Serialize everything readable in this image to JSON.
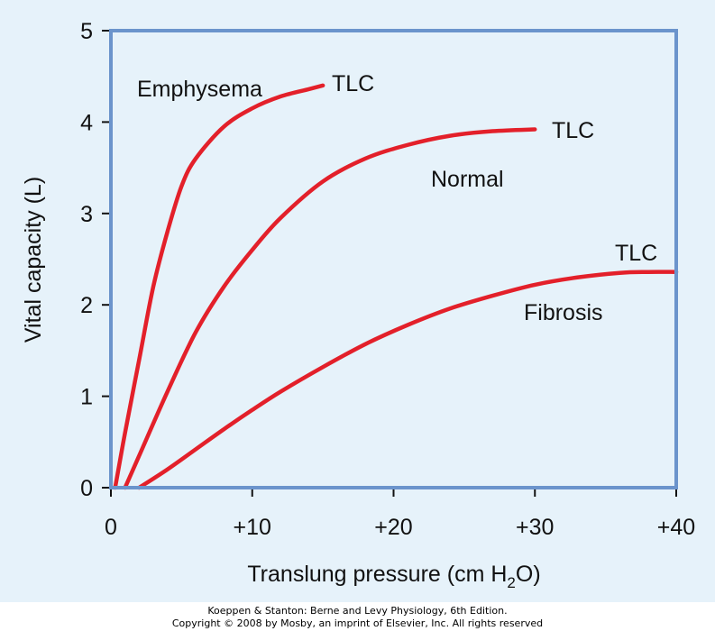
{
  "colors": {
    "panel_background": "#e6f2fa",
    "axis_frame": "#6b94cc",
    "curve": "#e3202a",
    "text": "#111111"
  },
  "chart_data": {
    "type": "line",
    "xlabel_main": "Translung pressure (cm H",
    "xlabel_sub": "2",
    "xlabel_end": "O)",
    "ylabel": "Vital capacity (L)",
    "xlim": [
      0,
      40
    ],
    "ylim": [
      0,
      5
    ],
    "x_ticks": [
      {
        "value": 0,
        "label": "0"
      },
      {
        "value": 10,
        "label": "+10"
      },
      {
        "value": 20,
        "label": "+20"
      },
      {
        "value": 30,
        "label": "+30"
      },
      {
        "value": 40,
        "label": "+40"
      }
    ],
    "y_ticks": [
      {
        "value": 0,
        "label": "0"
      },
      {
        "value": 1,
        "label": "1"
      },
      {
        "value": 2,
        "label": "2"
      },
      {
        "value": 3,
        "label": "3"
      },
      {
        "value": 4,
        "label": "4"
      },
      {
        "value": 5,
        "label": "5"
      }
    ],
    "series": [
      {
        "name": "Emphysema",
        "x": [
          0.3,
          1,
          2,
          3,
          4,
          5,
          6,
          8,
          10,
          12,
          14,
          15
        ],
        "y": [
          0,
          0.6,
          1.4,
          2.2,
          2.8,
          3.3,
          3.6,
          3.95,
          4.15,
          4.28,
          4.36,
          4.4
        ],
        "end_label": "TLC"
      },
      {
        "name": "Normal",
        "x": [
          1,
          2,
          4,
          6,
          8,
          10,
          12,
          15,
          18,
          21,
          24,
          27,
          30
        ],
        "y": [
          0,
          0.35,
          1.05,
          1.7,
          2.2,
          2.6,
          2.95,
          3.35,
          3.6,
          3.75,
          3.85,
          3.9,
          3.92
        ],
        "end_label": "TLC"
      },
      {
        "name": "Fibrosis",
        "x": [
          2,
          4,
          6,
          8,
          10,
          12,
          15,
          18,
          21,
          24,
          27,
          30,
          33,
          36,
          38,
          40
        ],
        "y": [
          0,
          0.2,
          0.42,
          0.64,
          0.85,
          1.05,
          1.32,
          1.57,
          1.78,
          1.96,
          2.1,
          2.22,
          2.3,
          2.35,
          2.36,
          2.36
        ],
        "end_label": "TLC"
      }
    ]
  },
  "credits": {
    "line1": "Koeppen & Stanton: Berne and Levy Physiology, 6th Edition.",
    "line2": "Copyright © 2008 by Mosby, an imprint of Elsevier, Inc. All rights reserved"
  }
}
